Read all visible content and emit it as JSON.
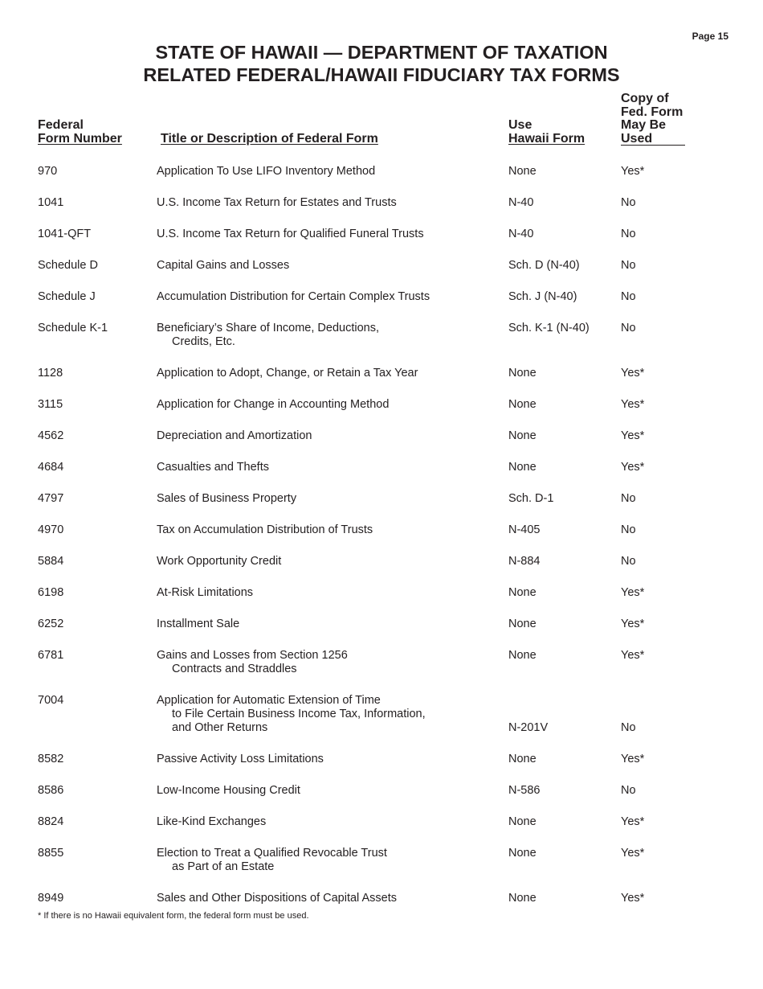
{
  "page_label": "Page 15",
  "title_line1": "STATE OF HAWAII — DEPARTMENT OF TAXATION",
  "title_line2": "RELATED FEDERAL/HAWAII FIDUCIARY TAX FORMS",
  "headers": {
    "federal_1": "Federal",
    "federal_2": "Form Number",
    "title": "Title or Description of Federal Form",
    "use_1": "Use",
    "use_2": "Hawaii Form",
    "copy_1": "Copy of",
    "copy_2": "Fed. Form",
    "copy_3": "May Be",
    "copy_4": "Used"
  },
  "rows": [
    {
      "form": "970",
      "title": [
        "Application To Use LIFO Inventory Method"
      ],
      "hawaii": "None",
      "copy": "Yes*"
    },
    {
      "form": "1041",
      "title": [
        "U.S. Income Tax Return for Estates and Trusts"
      ],
      "hawaii": "N-40",
      "copy": "No"
    },
    {
      "form": "1041-QFT",
      "title": [
        "U.S. Income Tax Return for Qualified Funeral Trusts"
      ],
      "hawaii": "N-40",
      "copy": "No"
    },
    {
      "form": "Schedule D",
      "title": [
        "Capital Gains and Losses"
      ],
      "hawaii": "Sch. D (N-40)",
      "copy": "No"
    },
    {
      "form": "Schedule J",
      "title": [
        "Accumulation Distribution for Certain Complex Trusts"
      ],
      "hawaii": "Sch. J (N-40)",
      "copy": "No"
    },
    {
      "form": "Schedule K-1",
      "title": [
        "Beneficiary’s Share of Income, Deductions,",
        "Credits, Etc."
      ],
      "hawaii": "Sch. K-1 (N-40)",
      "copy": "No"
    },
    {
      "form": "1128",
      "title": [
        "Application to Adopt, Change, or Retain a Tax Year"
      ],
      "hawaii": "None",
      "copy": "Yes*"
    },
    {
      "form": "3115",
      "title": [
        "Application for Change in Accounting Method"
      ],
      "hawaii": "None",
      "copy": "Yes*"
    },
    {
      "form": "4562",
      "title": [
        "Depreciation and Amortization"
      ],
      "hawaii": "None",
      "copy": "Yes*"
    },
    {
      "form": "4684",
      "title": [
        "Casualties and Thefts"
      ],
      "hawaii": "None",
      "copy": "Yes*"
    },
    {
      "form": "4797",
      "title": [
        "Sales of Business Property"
      ],
      "hawaii": "Sch. D-1",
      "copy": "No"
    },
    {
      "form": "4970",
      "title": [
        "Tax on Accumulation Distribution of Trusts"
      ],
      "hawaii": "N-405",
      "copy": "No"
    },
    {
      "form": "5884",
      "title": [
        "Work Opportunity Credit"
      ],
      "hawaii": "N-884",
      "copy": "No"
    },
    {
      "form": "6198",
      "title": [
        "At-Risk Limitations"
      ],
      "hawaii": "None",
      "copy": "Yes*"
    },
    {
      "form": "6252",
      "title": [
        "Installment Sale"
      ],
      "hawaii": "None",
      "copy": "Yes*"
    },
    {
      "form": "6781",
      "title": [
        "Gains and Losses from Section 1256",
        "Contracts and Straddles"
      ],
      "hawaii": "None",
      "copy": "Yes*"
    },
    {
      "form": "7004",
      "title": [
        "Application for Automatic Extension of Time",
        "to File Certain Business Income Tax, Information,",
        "and Other Returns"
      ],
      "hawaii": "N-201V",
      "copy": "No",
      "align": "bottom"
    },
    {
      "form": "8582",
      "title": [
        "Passive Activity Loss Limitations"
      ],
      "hawaii": "None",
      "copy": "Yes*"
    },
    {
      "form": "8586",
      "title": [
        "Low-Income Housing Credit"
      ],
      "hawaii": "N-586",
      "copy": "No"
    },
    {
      "form": "8824",
      "title": [
        "Like-Kind Exchanges"
      ],
      "hawaii": "None",
      "copy": "Yes*"
    },
    {
      "form": "8855",
      "title": [
        "Election to Treat a Qualified Revocable Trust",
        "as Part of an Estate"
      ],
      "hawaii": "None",
      "copy": "Yes*"
    },
    {
      "form": "8949",
      "title": [
        "Sales and Other Dispositions of Capital Assets"
      ],
      "hawaii": "None",
      "copy": "Yes*"
    }
  ],
  "footnote": "* If there is no Hawaii equivalent form, the federal form must be used."
}
